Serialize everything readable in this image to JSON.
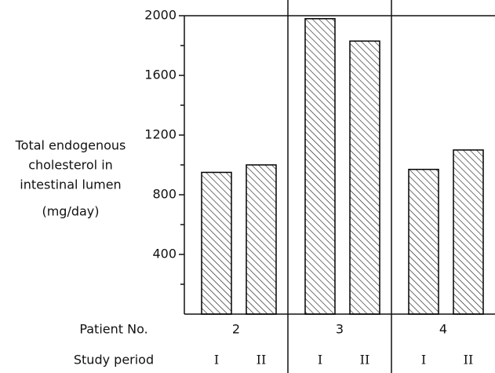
{
  "chart_data": {
    "type": "bar",
    "ylabel": [
      "Total endogenous",
      "cholesterol in",
      "intestinal lumen",
      "(mg/day)"
    ],
    "category_label": "Patient No.",
    "series_label": "Study period",
    "categories": [
      "2",
      "3",
      "4"
    ],
    "series": [
      {
        "name": "I",
        "color": "#000000",
        "values": [
          950,
          1980,
          970
        ]
      },
      {
        "name": "II",
        "color": "#000000",
        "values": [
          1000,
          1830,
          1100
        ]
      }
    ],
    "ylim": [
      0,
      2000
    ],
    "yticks": [
      400,
      800,
      1200,
      1600,
      2000
    ],
    "yminorticks": [
      200,
      600,
      1000,
      1400,
      1800
    ]
  }
}
